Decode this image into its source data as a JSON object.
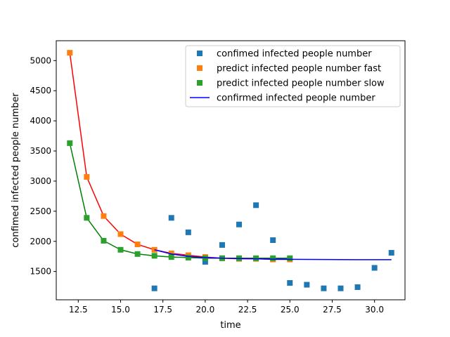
{
  "chart_data": {
    "type": "scatter",
    "xlabel": "time",
    "ylabel": "confimed infected people number",
    "xlim": [
      11.2,
      31.8
    ],
    "ylim": [
      1030,
      5330
    ],
    "xticks": [
      12.5,
      15.0,
      17.5,
      20.0,
      22.5,
      25.0,
      27.5,
      30.0
    ],
    "xtick_labels": [
      "12.5",
      "15.0",
      "17.5",
      "20.0",
      "22.5",
      "25.0",
      "27.5",
      "30.0"
    ],
    "yticks": [
      1500,
      2000,
      2500,
      3000,
      3500,
      4000,
      4500,
      5000
    ],
    "ytick_labels": [
      "1500",
      "2000",
      "2500",
      "3000",
      "3500",
      "4000",
      "4500",
      "5000"
    ],
    "legend_position": "top-right",
    "series": [
      {
        "name": "confimed infected people number",
        "kind": "marker",
        "marker": "square",
        "color": "#1f77b4",
        "x": [
          17,
          18,
          19,
          20,
          21,
          22,
          23,
          24,
          25,
          26,
          27,
          28,
          29,
          30,
          31
        ],
        "y": [
          1220,
          2390,
          2150,
          1660,
          1940,
          2280,
          2600,
          2020,
          1310,
          1280,
          1220,
          1220,
          1240,
          1560,
          1810
        ]
      },
      {
        "name": "predict infected people number fast",
        "kind": "marker+line",
        "marker": "square",
        "color": "#ff7f0e",
        "line_color": "#ff0000",
        "x": [
          12,
          13,
          14,
          15,
          16,
          17,
          18,
          19,
          20,
          21,
          22,
          23,
          24,
          25
        ],
        "y": [
          5130,
          3070,
          2420,
          2120,
          1950,
          1860,
          1800,
          1770,
          1740,
          1720,
          1710,
          1710,
          1700,
          1700
        ]
      },
      {
        "name": "predict infected people number slow",
        "kind": "marker+line",
        "marker": "square",
        "color": "#2ca02c",
        "line_color": "#008000",
        "x": [
          12,
          13,
          14,
          15,
          16,
          17,
          18,
          19,
          20,
          21,
          22,
          23,
          24,
          25
        ],
        "y": [
          3630,
          2390,
          2010,
          1860,
          1790,
          1760,
          1740,
          1730,
          1720,
          1720,
          1720,
          1720,
          1720,
          1720
        ]
      },
      {
        "name": "confirmed infected people number",
        "kind": "line",
        "color": "#0000ff",
        "x": [
          17,
          18,
          19,
          20,
          21,
          22,
          23,
          24,
          25,
          26,
          27,
          28,
          29,
          30,
          31
        ],
        "y": [
          1860,
          1790,
          1750,
          1730,
          1720,
          1715,
          1710,
          1705,
          1702,
          1700,
          1698,
          1697,
          1696,
          1696,
          1695
        ]
      }
    ]
  }
}
